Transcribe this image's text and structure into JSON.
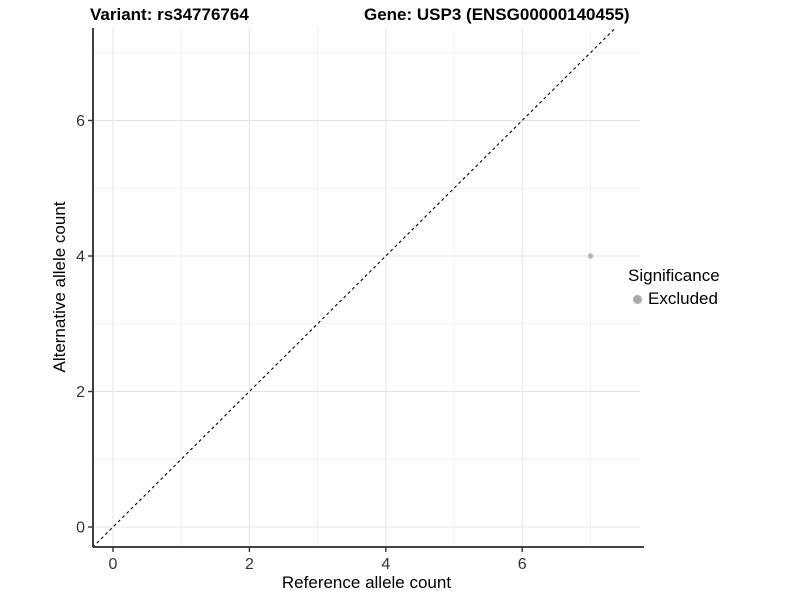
{
  "titles": {
    "left": "Variant: rs34776764",
    "right": "Gene: USP3 (ENSG00000140455)"
  },
  "chart_data": {
    "type": "scatter",
    "xlabel": "Reference allele count",
    "ylabel": "Alternative allele count",
    "xlim": [
      -0.3,
      7.8
    ],
    "ylim": [
      -0.3,
      7.37
    ],
    "x_ticks": [
      0,
      2,
      4,
      6
    ],
    "y_ticks": [
      0,
      2,
      4,
      6
    ],
    "x_minor_ticks": [
      1,
      3,
      5,
      7
    ],
    "y_minor_ticks": [
      1,
      3,
      5,
      7
    ],
    "grid": true,
    "points": [
      {
        "x": 7,
        "y": 4,
        "series": "Excluded"
      }
    ],
    "reference_line": {
      "type": "identity",
      "equation": "y = x",
      "style": "dashed"
    },
    "legend": {
      "title": "Significance",
      "position": "right",
      "items": [
        {
          "label": "Excluded",
          "color": "#ABABAB"
        }
      ]
    }
  },
  "colors": {
    "background": "#FFFFFF",
    "grid_major": "#E4E4E4",
    "grid_minor": "#F1F1F1",
    "axis_line": "#2A2A2A",
    "tick_mark": "#333333",
    "tick_text": "#333333",
    "title_text": "#000000",
    "point": "#B3B3B3",
    "diagonal": "#000000"
  }
}
